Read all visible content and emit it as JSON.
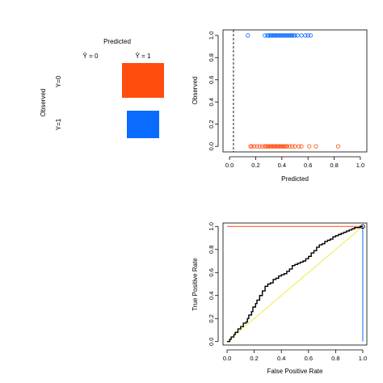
{
  "colors": {
    "observed_0": "#ff4d0d",
    "observed_1": "#0a6bff",
    "roc_curve": "#000000",
    "diagonal": "#f5e84a",
    "cutoff_line": "#000000"
  },
  "chart_data": [
    {
      "type": "heatmap",
      "xlabel": "Predicted",
      "ylabel": "Observed",
      "col_labels": [
        "Ŷ = 0",
        "Ŷ = 1"
      ],
      "row_labels": [
        "Y=0",
        "Y=1"
      ],
      "cells": [
        {
          "row": "Y=0",
          "col": "Ŷ = 1",
          "color": "observed_0",
          "relative_size": 1.0
        },
        {
          "row": "Y=1",
          "col": "Ŷ = 1",
          "color": "observed_1",
          "relative_size": 0.77
        }
      ]
    },
    {
      "type": "scatter",
      "xlabel": "Predicted",
      "ylabel": "Observed",
      "xlim": [
        -0.05,
        1.05
      ],
      "ylim": [
        -0.05,
        1.05
      ],
      "xticks": [
        "0.0",
        "0.2",
        "0.4",
        "0.6",
        "0.8",
        "1.0"
      ],
      "yticks": [
        "0.0",
        "0.2",
        "0.4",
        "0.6",
        "0.8",
        "1.0"
      ],
      "cutoff": 0.03,
      "series": [
        {
          "observed": 1,
          "x": [
            0.14,
            0.27,
            0.29,
            0.3,
            0.31,
            0.32,
            0.33,
            0.34,
            0.35,
            0.35,
            0.36,
            0.37,
            0.38,
            0.39,
            0.4,
            0.41,
            0.42,
            0.43,
            0.44,
            0.45,
            0.46,
            0.47,
            0.48,
            0.49,
            0.5,
            0.52,
            0.55,
            0.58,
            0.6,
            0.62
          ]
        },
        {
          "observed": 0,
          "x": [
            0.16,
            0.17,
            0.19,
            0.21,
            0.23,
            0.25,
            0.27,
            0.28,
            0.29,
            0.3,
            0.31,
            0.32,
            0.33,
            0.34,
            0.35,
            0.36,
            0.37,
            0.38,
            0.39,
            0.4,
            0.41,
            0.42,
            0.43,
            0.44,
            0.46,
            0.48,
            0.5,
            0.53,
            0.55,
            0.61,
            0.66,
            0.83
          ]
        }
      ]
    },
    {
      "type": "line",
      "xlabel": "False Positive Rate",
      "ylabel": "True Positive Rate",
      "xlim": [
        -0.03,
        1.03
      ],
      "ylim": [
        -0.03,
        1.03
      ],
      "xticks": [
        "0.0",
        "0.2",
        "0.4",
        "0.6",
        "0.8",
        "1.0"
      ],
      "yticks": [
        "0.0",
        "0.2",
        "0.4",
        "0.6",
        "0.8",
        "1.0"
      ],
      "roc": [
        [
          0.0,
          0.0
        ],
        [
          0.02,
          0.02
        ],
        [
          0.03,
          0.04
        ],
        [
          0.05,
          0.06
        ],
        [
          0.06,
          0.08
        ],
        [
          0.08,
          0.11
        ],
        [
          0.1,
          0.13
        ],
        [
          0.12,
          0.16
        ],
        [
          0.14,
          0.17
        ],
        [
          0.15,
          0.2
        ],
        [
          0.16,
          0.23
        ],
        [
          0.18,
          0.26
        ],
        [
          0.19,
          0.3
        ],
        [
          0.21,
          0.33
        ],
        [
          0.22,
          0.36
        ],
        [
          0.24,
          0.4
        ],
        [
          0.26,
          0.44
        ],
        [
          0.28,
          0.48
        ],
        [
          0.3,
          0.5
        ],
        [
          0.32,
          0.51
        ],
        [
          0.34,
          0.54
        ],
        [
          0.36,
          0.55
        ],
        [
          0.38,
          0.57
        ],
        [
          0.4,
          0.58
        ],
        [
          0.42,
          0.59
        ],
        [
          0.44,
          0.61
        ],
        [
          0.46,
          0.63
        ],
        [
          0.48,
          0.66
        ],
        [
          0.5,
          0.67
        ],
        [
          0.52,
          0.68
        ],
        [
          0.54,
          0.69
        ],
        [
          0.56,
          0.7
        ],
        [
          0.58,
          0.72
        ],
        [
          0.6,
          0.74
        ],
        [
          0.62,
          0.77
        ],
        [
          0.64,
          0.79
        ],
        [
          0.66,
          0.82
        ],
        [
          0.68,
          0.84
        ],
        [
          0.7,
          0.85
        ],
        [
          0.72,
          0.87
        ],
        [
          0.74,
          0.88
        ],
        [
          0.76,
          0.89
        ],
        [
          0.78,
          0.91
        ],
        [
          0.8,
          0.92
        ],
        [
          0.82,
          0.93
        ],
        [
          0.84,
          0.94
        ],
        [
          0.86,
          0.95
        ],
        [
          0.88,
          0.96
        ],
        [
          0.9,
          0.97
        ],
        [
          0.92,
          0.98
        ],
        [
          0.94,
          0.99
        ],
        [
          0.96,
          0.99
        ],
        [
          0.98,
          1.0
        ],
        [
          1.0,
          1.0
        ]
      ],
      "diagonal": [
        [
          0.0,
          0.0
        ],
        [
          1.0,
          1.0
        ]
      ],
      "top_line_y": 1.0,
      "right_line_x": 1.0,
      "endpoint": [
        1.0,
        1.0
      ]
    }
  ]
}
